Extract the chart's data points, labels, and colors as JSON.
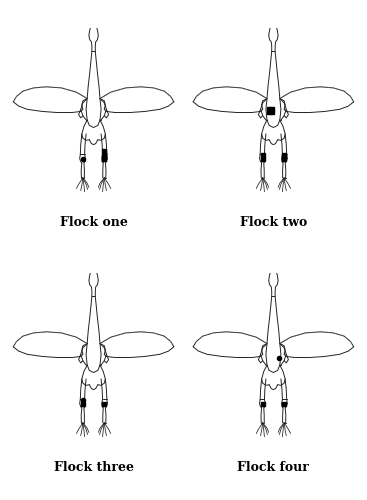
{
  "flock_labels": [
    "Flock one",
    "Flock two",
    "Flock three",
    "Flock four"
  ],
  "label_fontsize": 9,
  "background_color": "#ffffff",
  "line_color": "#222222",
  "marker_color": "#000000",
  "dot_size": 3.0,
  "square_size": 3.0,
  "flock_markers": {
    "1": {
      "left_hock": [
        {
          "type": "dot"
        }
      ],
      "right_hock": [
        {
          "type": "square"
        },
        {
          "type": "square"
        },
        {
          "type": "square"
        }
      ],
      "sternal": []
    },
    "2": {
      "left_hock": [
        {
          "type": "square"
        },
        {
          "type": "square"
        }
      ],
      "right_hock": [
        {
          "type": "square"
        },
        {
          "type": "square"
        }
      ],
      "sternal": [
        {
          "type": "square2x2"
        }
      ]
    },
    "3": {
      "left_hock": [
        {
          "type": "square"
        },
        {
          "type": "dot"
        }
      ],
      "right_hock": [
        {
          "type": "square"
        }
      ],
      "sternal": []
    },
    "4": {
      "left_hock": [
        {
          "type": "square"
        }
      ],
      "right_hock": [
        {
          "type": "square"
        }
      ],
      "sternal": [
        {
          "type": "dot"
        }
      ]
    }
  }
}
